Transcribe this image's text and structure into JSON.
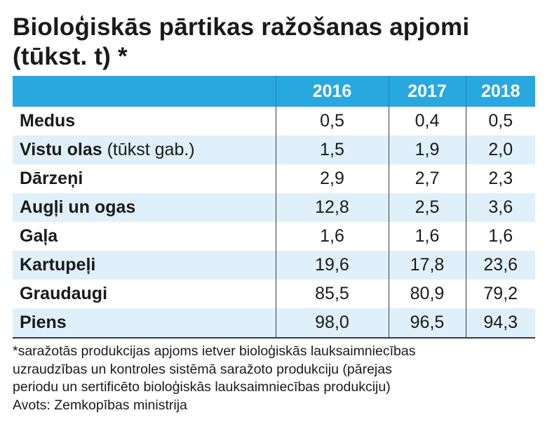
{
  "title": {
    "line1": "Bioloģiskās pārtikas ražošanas apjomi",
    "line2": "(tūkst. t) *"
  },
  "chart_data": {
    "type": "table",
    "title": "Bioloģiskās pārtikas ražošanas apjomi (tūkst. t) *",
    "columns": [
      "",
      "2016",
      "2017",
      "2018"
    ],
    "rows": [
      {
        "label": "Medus",
        "unit": "",
        "values": [
          "0,5",
          "0,4",
          "0,5"
        ]
      },
      {
        "label": "Vistu olas",
        "unit": " (tūkst gab.)",
        "values": [
          "1,5",
          "1,9",
          "2,0"
        ]
      },
      {
        "label": "Dārzeņi",
        "unit": "",
        "values": [
          "2,9",
          "2,7",
          "2,3"
        ]
      },
      {
        "label": "Augļi un ogas",
        "unit": "",
        "values": [
          "12,8",
          "2,5",
          "3,6"
        ]
      },
      {
        "label": "Gaļa",
        "unit": "",
        "values": [
          "1,6",
          "1,6",
          "1,6"
        ]
      },
      {
        "label": "Kartupeļi",
        "unit": "",
        "values": [
          "19,6",
          "17,8",
          "23,6"
        ]
      },
      {
        "label": "Graudaugi",
        "unit": "",
        "values": [
          "85,5",
          "80,9",
          "79,2"
        ]
      },
      {
        "label": "Piens",
        "unit": "",
        "values": [
          "98,0",
          "96,5",
          "94,3"
        ]
      }
    ]
  },
  "footnote": {
    "lines": [
      "*saražotās produkcijas apjoms ietver bioloģiskās lauksaimniecības",
      "uzraudzības un kontroles sistēmā saražoto produkciju (pārejas",
      "periodu un sertificēto bioloģiskās lauksaimniecības produkciju)"
    ],
    "source": "Avots: Zemkopības ministrija"
  },
  "colors": {
    "header_bg": "#29a8e0",
    "stripe_bg": "#dff0fa",
    "text": "#1a1a1a"
  }
}
